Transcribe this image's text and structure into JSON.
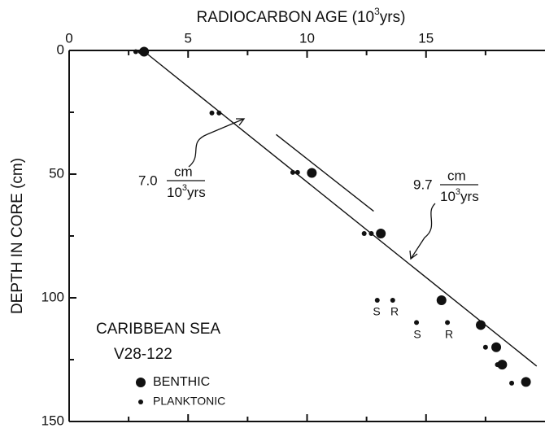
{
  "chart_data": {
    "type": "scatter",
    "title": {
      "main": "RADIOCARBON AGE (10",
      "sup": "3",
      "end": "yrs)"
    },
    "y_label": "DEPTH IN CORE (cm)",
    "xlim": [
      0,
      20
    ],
    "ylim": [
      0,
      150
    ],
    "xticks": [
      0,
      5,
      10,
      15
    ],
    "yticks": [
      0,
      50,
      100,
      150
    ],
    "xminor": [
      2.5,
      7.5,
      12.5,
      17.5
    ],
    "yminor": [
      25,
      75,
      125
    ],
    "y_inverted": true,
    "series": [
      {
        "name": "BENTHIC",
        "color": "#111",
        "size": 6,
        "x": [
          3.15,
          10.2,
          13.1,
          15.65,
          17.3,
          17.95,
          18.2,
          19.2
        ],
        "values": [
          0.5,
          49.5,
          74,
          101,
          111,
          120,
          127,
          134
        ]
      },
      {
        "name": "PLANKTONIC",
        "color": "#111",
        "size": 3,
        "x": [
          2.8,
          3.0,
          6.0,
          6.3,
          9.4,
          9.6,
          12.4,
          12.7,
          12.95,
          13.6,
          14.6,
          15.9,
          17.5,
          18.0,
          18.6
        ],
        "values": [
          0.5,
          0.5,
          25.3,
          25.3,
          49.3,
          49.3,
          74,
          74,
          101,
          101,
          110,
          110,
          120,
          127,
          134.5
        ]
      }
    ],
    "lines": [
      {
        "x": [
          3.1,
          19.65
        ],
        "values": [
          0,
          127.6
        ]
      },
      {
        "x": [
          8.7,
          12.8
        ],
        "values": [
          34,
          65
        ]
      }
    ],
    "annotations": {
      "location": "CARIBBEAN SEA",
      "core": "V28-122",
      "rate1": {
        "coef": "7.0",
        "num": "cm",
        "den": "10",
        "sup": "3",
        "unit": "yrs"
      },
      "rate2": {
        "coef": "9.7",
        "num": "cm",
        "den": "10",
        "sup": "3",
        "unit": "yrs"
      },
      "point_labels": [
        "S",
        "R",
        "S",
        "R"
      ]
    }
  }
}
